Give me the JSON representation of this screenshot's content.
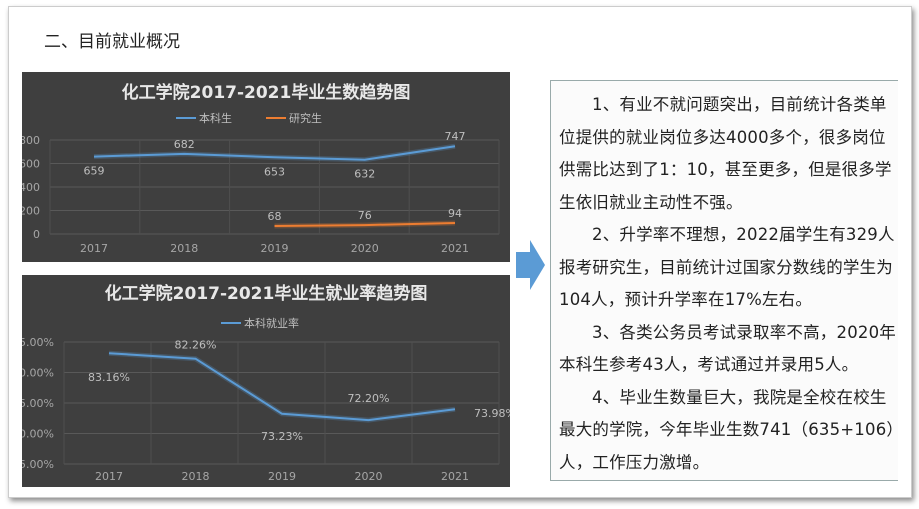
{
  "slide_title": "二、目前就业概况",
  "chart_data": [
    {
      "type": "line",
      "title": "化工学院2017-2021毕业生数趋势图",
      "categories": [
        "2017",
        "2018",
        "2019",
        "2020",
        "2021"
      ],
      "ylim": [
        0,
        800
      ],
      "yticks": [
        "0",
        "200",
        "400",
        "600",
        "800"
      ],
      "grid": true,
      "legend": "top",
      "series": [
        {
          "name": "本科生",
          "color": "#5b9bd5",
          "values": [
            659,
            682,
            653,
            632,
            747
          ]
        },
        {
          "name": "研究生",
          "color": "#ed7d31",
          "values": [
            null,
            null,
            68,
            76,
            94
          ]
        }
      ]
    },
    {
      "type": "line",
      "title": "化工学院2017-2021毕业生就业率趋势图",
      "categories": [
        "2017",
        "2018",
        "2019",
        "2020",
        "2021"
      ],
      "ylim": [
        65,
        85
      ],
      "yticks": [
        "65.00%",
        "70.00%",
        "75.00%",
        "80.00%",
        "85.00%"
      ],
      "grid": true,
      "legend": "top",
      "series": [
        {
          "name": "本科就业率",
          "color": "#5b9bd5",
          "values": [
            83.16,
            82.26,
            73.23,
            72.2,
            73.98
          ],
          "labels": [
            "83.16%",
            "82.26%",
            "73.23%",
            "72.20%",
            "73.98%"
          ]
        }
      ]
    }
  ],
  "arrow_color": "#5b9bd5",
  "paragraphs": [
    "1、有业不就问题突出，目前统计各类单位提供的就业岗位多达4000多个，很多岗位供需比达到了1：10，甚至更多，但是很多学生依旧就业主动性不强。",
    "2、升学率不理想，2022届学生有329人报考研究生，目前统计过国家分数线的学生为104人，预计升学率在17%左右。",
    "3、各类公务员考试录取率不高，2020年本科生参考43人，考试通过并录用5人。",
    "4、毕业生数量巨大，我院是全校在校生最大的学院，今年毕业生数741（635+106）人，工作压力激增。"
  ]
}
